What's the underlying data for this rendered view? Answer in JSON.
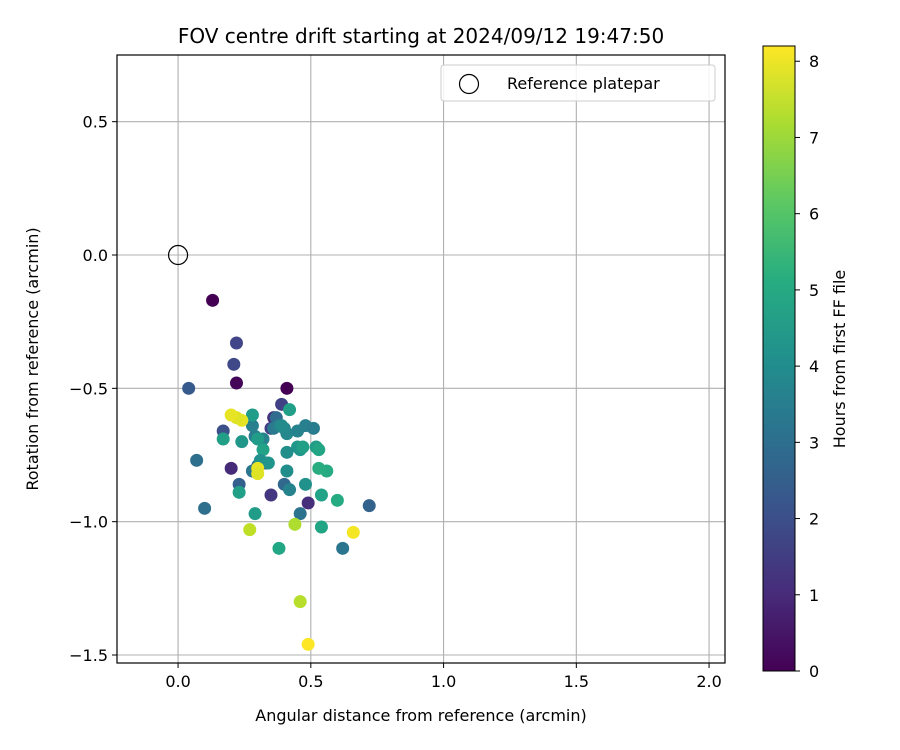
{
  "chart_data": {
    "type": "scatter",
    "title": "FOV centre drift starting at 2024/09/12 19:47:50",
    "xlabel": "Angular distance from reference (arcmin)",
    "ylabel": "Rotation from reference (arcmin)",
    "xlim": [
      -0.23,
      2.06
    ],
    "ylim": [
      -1.53,
      0.75
    ],
    "x_ticks": [
      0.0,
      0.5,
      1.0,
      1.5,
      2.0
    ],
    "x_tick_labels": [
      "0.0",
      "0.5",
      "1.0",
      "1.5",
      "2.0"
    ],
    "y_ticks": [
      0.5,
      0.0,
      -0.5,
      -1.0,
      -1.5
    ],
    "y_tick_labels": [
      "0.5",
      "0.0",
      "−0.5",
      "−1.0",
      "−1.5"
    ],
    "grid": true,
    "legend": {
      "position": "top-right",
      "entries": [
        "Reference platepar"
      ]
    },
    "colorbar": {
      "label": "Hours from first FF file",
      "range": [
        0,
        8.2
      ],
      "ticks": [
        0,
        1,
        2,
        3,
        4,
        5,
        6,
        7,
        8
      ],
      "tick_labels": [
        "0",
        "1",
        "2",
        "3",
        "4",
        "5",
        "6",
        "7",
        "8"
      ],
      "colormap": "viridis"
    },
    "reference_point": {
      "name": "Reference platepar",
      "x": 0.0,
      "y": 0.0
    },
    "series": [
      {
        "name": "FOV centre drift",
        "x": [
          0.13,
          0.41,
          0.22,
          0.22,
          0.21,
          0.39,
          0.33,
          0.36,
          0.35,
          0.2,
          0.35,
          0.49,
          0.04,
          0.23,
          0.17,
          0.4,
          0.37,
          0.3,
          0.46,
          0.07,
          0.1,
          0.28,
          0.36,
          0.29,
          0.28,
          0.32,
          0.38,
          0.4,
          0.41,
          0.45,
          0.48,
          0.51,
          0.52,
          0.45,
          0.42,
          0.41,
          0.32,
          0.31,
          0.34,
          0.41,
          0.48,
          0.46,
          0.72,
          0.62,
          0.3,
          0.42,
          0.28,
          0.24,
          0.47,
          0.53,
          0.54,
          0.56,
          0.6,
          0.53,
          0.54,
          0.38,
          0.23,
          0.29,
          0.17,
          0.39,
          0.3,
          0.24,
          0.22,
          0.2,
          0.3,
          0.27,
          0.44,
          0.46,
          0.66,
          0.49
        ],
        "y": [
          -0.17,
          -0.5,
          -0.48,
          -0.33,
          -0.41,
          -0.56,
          -0.78,
          -0.61,
          -0.65,
          -0.8,
          -0.9,
          -0.93,
          -0.5,
          -0.86,
          -0.66,
          -0.86,
          -0.61,
          -0.79,
          -0.97,
          -0.77,
          -0.95,
          -0.81,
          -0.65,
          -0.68,
          -0.64,
          -0.69,
          -0.64,
          -0.65,
          -0.67,
          -0.66,
          -0.64,
          -0.65,
          -0.72,
          -0.72,
          -0.58,
          -0.74,
          -0.73,
          -0.77,
          -0.78,
          -0.81,
          -0.86,
          -0.73,
          -0.94,
          -1.1,
          -0.69,
          -0.88,
          -0.6,
          -0.7,
          -0.72,
          -0.73,
          -0.9,
          -0.81,
          -0.92,
          -0.8,
          -1.02,
          -1.1,
          -0.89,
          -0.97,
          -0.69,
          -0.64,
          -0.8,
          -0.62,
          -0.61,
          -0.6,
          -0.82,
          -1.03,
          -1.01,
          -1.3,
          -1.04,
          -1.46
        ],
        "hours": [
          0.0,
          0.0,
          0.1,
          1.7,
          1.8,
          1.6,
          1.4,
          1.2,
          1.5,
          1.0,
          1.3,
          1.1,
          2.3,
          2.5,
          2.0,
          2.8,
          2.9,
          3.0,
          3.1,
          3.0,
          3.0,
          3.2,
          3.3,
          3.4,
          3.5,
          3.6,
          3.5,
          3.7,
          3.8,
          3.6,
          3.5,
          3.4,
          4.5,
          4.3,
          4.6,
          4.0,
          4.7,
          4.1,
          4.2,
          4.0,
          4.1,
          4.2,
          2.6,
          3.2,
          4.5,
          3.6,
          4.5,
          4.3,
          4.6,
          4.8,
          4.7,
          5.0,
          5.0,
          5.1,
          4.8,
          4.9,
          4.6,
          4.5,
          4.6,
          3.9,
          7.9,
          7.9,
          7.8,
          7.9,
          7.8,
          7.4,
          7.2,
          7.3,
          8.1,
          8.2
        ]
      }
    ]
  }
}
